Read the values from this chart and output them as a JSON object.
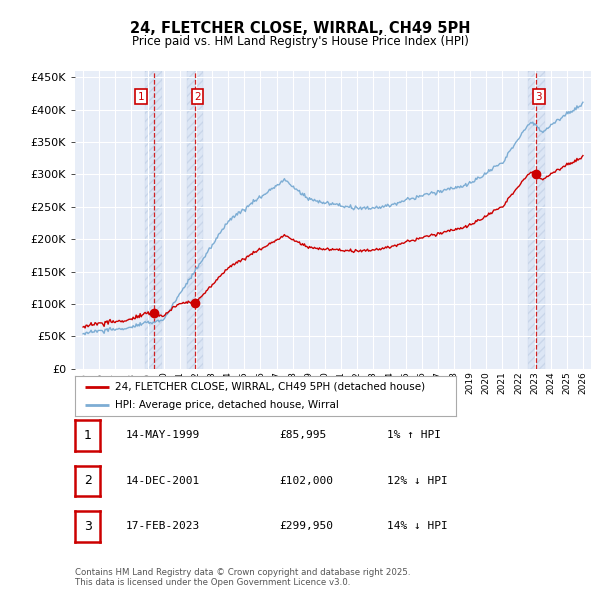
{
  "title": "24, FLETCHER CLOSE, WIRRAL, CH49 5PH",
  "subtitle": "Price paid vs. HM Land Registry's House Price Index (HPI)",
  "legend_label_red": "24, FLETCHER CLOSE, WIRRAL, CH49 5PH (detached house)",
  "legend_label_blue": "HPI: Average price, detached house, Wirral",
  "footer": "Contains HM Land Registry data © Crown copyright and database right 2025.\nThis data is licensed under the Open Government Licence v3.0.",
  "transactions": [
    {
      "num": 1,
      "date": "14-MAY-1999",
      "price": "£85,995",
      "pct": "1%",
      "dir": "↑",
      "x": 1999.37,
      "price_val": 85995
    },
    {
      "num": 2,
      "date": "14-DEC-2001",
      "price": "£102,000",
      "pct": "12%",
      "dir": "↓",
      "x": 2001.95,
      "price_val": 102000
    },
    {
      "num": 3,
      "date": "17-FEB-2023",
      "price": "£299,950",
      "pct": "14%",
      "dir": "↓",
      "x": 2023.12,
      "price_val": 299950
    }
  ],
  "background_color": "#ffffff",
  "plot_bg_color": "#e8eef8",
  "grid_color": "#ffffff",
  "red_color": "#cc0000",
  "blue_color": "#7dadd4",
  "vline_color": "#cc0000",
  "hatch_color": "#d0d8ea",
  "ylim": [
    0,
    460000
  ],
  "yticks": [
    0,
    50000,
    100000,
    150000,
    200000,
    250000,
    300000,
    350000,
    400000,
    450000
  ],
  "xlim": [
    1994.5,
    2026.5
  ],
  "xticks": [
    1995,
    1996,
    1997,
    1998,
    1999,
    2000,
    2001,
    2002,
    2003,
    2004,
    2005,
    2006,
    2007,
    2008,
    2009,
    2010,
    2011,
    2012,
    2013,
    2014,
    2015,
    2016,
    2017,
    2018,
    2019,
    2020,
    2021,
    2022,
    2023,
    2024,
    2025,
    2026
  ]
}
